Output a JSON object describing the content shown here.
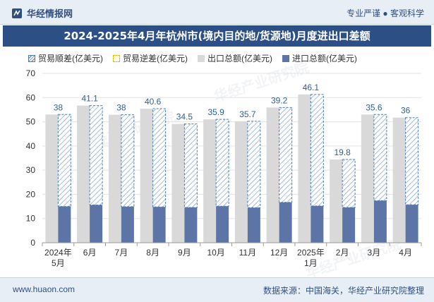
{
  "header": {
    "brand": "华经情报网",
    "tagline": "专业严谨 ● 客观科学"
  },
  "watermark": "华经产业研究院",
  "footer": {
    "site": "www.huaon.com",
    "source": "数据来源：中国海关，华经产业研究院整理"
  },
  "legend": {
    "positive": "贸易顺差(亿美元)",
    "negative": "贸易逆差(亿美元)",
    "export": "出口总额(亿美元)",
    "import": "进口总额(亿美元)"
  },
  "colors": {
    "export": "#d9d9d9",
    "import": "#5c75a6",
    "surplus": "#4a7bb7",
    "label": "#2f5f9a",
    "title_bg": "#2c4f86"
  },
  "chart_data": {
    "type": "bar",
    "title": "2024-2025年4月年杭州市(境内目的地/货源地)月度进出口差额",
    "categories": [
      "2024年\n5月",
      "6月",
      "7月",
      "8月",
      "9月",
      "10月",
      "11月",
      "12月",
      "2025年\n1月",
      "2月",
      "3月",
      "4月"
    ],
    "ylim": [
      0,
      70
    ],
    "yticks": [
      0,
      10,
      20,
      30,
      40,
      50,
      60,
      70
    ],
    "grid": true,
    "legend_position": "top",
    "series": [
      {
        "name": "出口总额(亿美元)",
        "values": [
          53.0,
          56.7,
          52.9,
          55.4,
          49.1,
          51.0,
          50.2,
          55.9,
          61.3,
          34.4,
          53.0,
          51.7
        ]
      },
      {
        "name": "进口总额(亿美元)",
        "values": [
          15.0,
          15.6,
          14.9,
          14.8,
          14.6,
          15.1,
          14.5,
          16.7,
          15.2,
          14.6,
          17.4,
          15.7
        ]
      },
      {
        "name": "贸易顺差(亿美元)",
        "values": [
          38,
          41.1,
          38,
          40.6,
          34.5,
          35.9,
          35.7,
          39.2,
          46.1,
          19.8,
          35.6,
          36
        ]
      },
      {
        "name": "贸易逆差(亿美元)",
        "values": [
          0,
          0,
          0,
          0,
          0,
          0,
          0,
          0,
          0,
          0,
          0,
          0
        ]
      }
    ]
  }
}
